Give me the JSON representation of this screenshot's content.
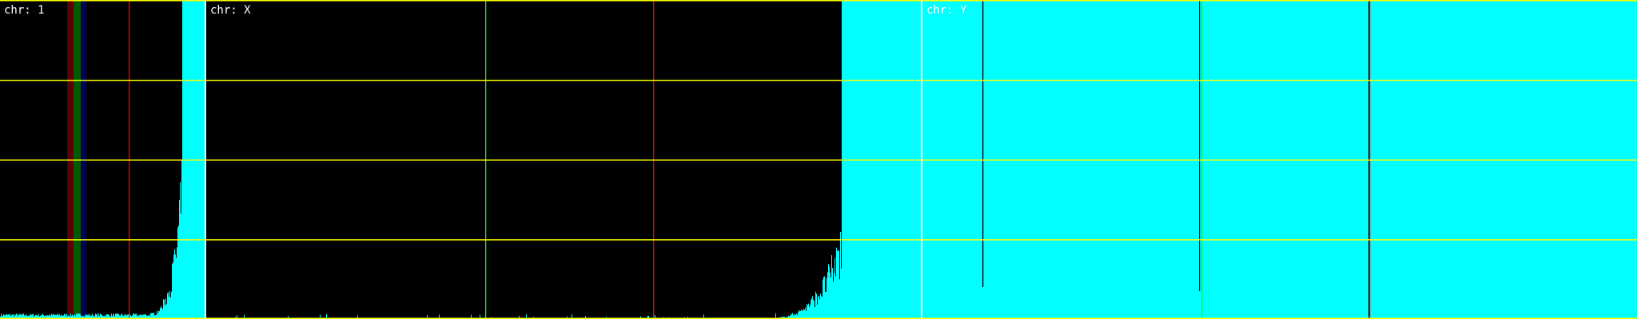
{
  "colors": {
    "background": "#000000",
    "coverage": "#00ffff",
    "gridline": "#ffff00",
    "divider": "#ffffff",
    "marker_green": "#00ff00",
    "marker_red": "#ff0000",
    "marker_black": "#000000",
    "band_red": "#5a0000",
    "band_green": "#005a00",
    "band_blue": "#00005a"
  },
  "chart_data": [
    {
      "type": "bar",
      "label": "chr:  1",
      "grid": true,
      "ylim": [
        0,
        4
      ],
      "fully_saturated_tail": true
    },
    {
      "type": "bar",
      "label": "chr:  X",
      "grid": true,
      "ylim": [
        0,
        4
      ],
      "fully_saturated_tail": true
    },
    {
      "type": "bar",
      "label": "chr:  Y",
      "grid": true,
      "ylim": [
        0,
        4
      ],
      "fully_saturated": true
    }
  ]
}
